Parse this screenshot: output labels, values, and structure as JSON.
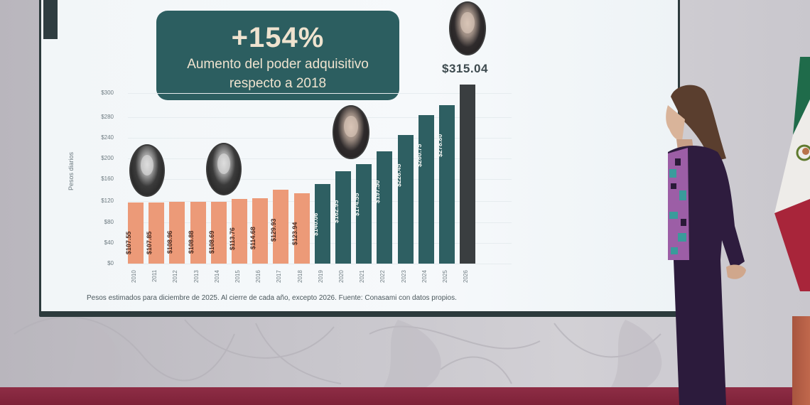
{
  "scene": {
    "description": "Presenter standing beside a projected bar chart at a press conference",
    "colors": {
      "wall": "#c8c6cc",
      "floor": "#8e2d45",
      "screen_bg": "#f4f8fa",
      "screen_frame": "#2c3a3c",
      "flag_green": "#1f6b4a",
      "flag_white": "#f0eeec",
      "flag_red": "#a8253a",
      "suit": "#2e1c3e"
    }
  },
  "slide": {
    "headline": {
      "value": "+154%",
      "subtitle_line1": "Aumento del poder adquisitivo",
      "subtitle_line2": "respecto a 2018",
      "bg_color": "#2c5e60",
      "text_color": "#efe3cf"
    },
    "peak_label": "$315.04",
    "footnote": "Pesos estimados para diciembre de 2025. Al cierre de cada año, excepto 2026. Fuente: Conasami con datos propios.",
    "portraits": [
      {
        "name": "portrait-2010-2012-period",
        "style": "bw"
      },
      {
        "name": "portrait-2013-2018-period",
        "style": "bw"
      },
      {
        "name": "portrait-2019-2024-period",
        "style": "color"
      },
      {
        "name": "portrait-2026",
        "style": "color"
      }
    ]
  },
  "chart_data": {
    "type": "bar",
    "title": "+154% Aumento del poder adquisitivo respecto a 2018",
    "xlabel": "",
    "ylabel": "Pesos diarios",
    "ylim": [
      0,
      300
    ],
    "ytick_labels": [
      "$300",
      "$280",
      "$240",
      "$200",
      "$160",
      "$120",
      "$80",
      "$40",
      "$0"
    ],
    "grid": true,
    "legend": null,
    "categories": [
      "2010",
      "2011",
      "2012",
      "2013",
      "2014",
      "2015",
      "2016",
      "2017",
      "2018",
      "2019",
      "2020",
      "2021",
      "2022",
      "2023",
      "2024",
      "2025",
      "2026"
    ],
    "values": [
      107.55,
      107.85,
      108.96,
      108.88,
      108.69,
      113.76,
      114.68,
      129.93,
      123.94,
      140.06,
      162.95,
      174.55,
      197.5,
      226.45,
      260.75,
      278.8,
      315.04
    ],
    "value_labels": [
      "$107.55",
      "$107.85",
      "$108.96",
      "$108.88",
      "$108.69",
      "$113.76",
      "$114.68",
      "$129.93",
      "$123.94",
      "$140.06",
      "$162.95",
      "$174.55",
      "$197.50",
      "$226.45",
      "$260.75",
      "$278.80",
      "$315.04"
    ],
    "bar_colors": {
      "2010-2018": "#ec9a78",
      "2019-2025": "#2e5f62",
      "2026": "#3a3e40"
    },
    "annotations": [
      "+154%",
      "Aumento del poder adquisitivo respecto a 2018",
      "$315.04"
    ],
    "footnote": "Pesos estimados para diciembre de 2025. Al cierre de cada año, excepto 2026. Fuente: Conasami con datos propios."
  }
}
